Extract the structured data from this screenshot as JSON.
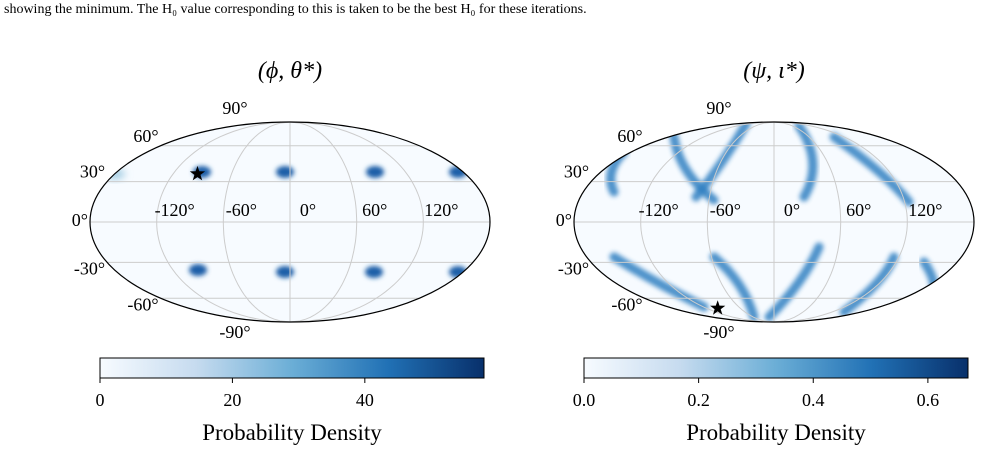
{
  "caption": "showing the minimum. The H₀ value corresponding to this is taken to be the best H₀ for these iterations.",
  "panels": [
    {
      "title": "(ϕ, θ*)",
      "lon_ticks": [
        {
          "value": -120,
          "label": "-120°"
        },
        {
          "value": -60,
          "label": "-60°"
        },
        {
          "value": 0,
          "label": "0°"
        },
        {
          "value": 60,
          "label": "60°"
        },
        {
          "value": 120,
          "label": "120°"
        }
      ],
      "lat_ticks": [
        {
          "value": 90,
          "label": "90°"
        },
        {
          "value": 60,
          "label": "60°"
        },
        {
          "value": 30,
          "label": "30°"
        },
        {
          "value": 0,
          "label": "0°"
        },
        {
          "value": -30,
          "label": "-30°"
        },
        {
          "value": -60,
          "label": "-60°"
        },
        {
          "value": -90,
          "label": "-90°"
        }
      ],
      "star": {
        "lon": -95,
        "lat": 36
      },
      "colorbar": {
        "lim": [
          0,
          58
        ],
        "ticks": [
          0,
          20,
          40
        ],
        "label": "Probability Density"
      }
    },
    {
      "title": "(ψ, ι*)",
      "lon_ticks": [
        {
          "value": -120,
          "label": "-120°"
        },
        {
          "value": -60,
          "label": "-60°"
        },
        {
          "value": 0,
          "label": "0°"
        },
        {
          "value": 60,
          "label": "60°"
        },
        {
          "value": 120,
          "label": "120°"
        }
      ],
      "lat_ticks": [
        {
          "value": 90,
          "label": "90°"
        },
        {
          "value": 60,
          "label": "60°"
        },
        {
          "value": 30,
          "label": "30°"
        },
        {
          "value": 0,
          "label": "0°"
        },
        {
          "value": -30,
          "label": "-30°"
        },
        {
          "value": -60,
          "label": "-60°"
        },
        {
          "value": -90,
          "label": "-90°"
        }
      ],
      "star": {
        "lon": -100,
        "lat": -70
      },
      "colorbar": {
        "lim": [
          0,
          0.67
        ],
        "ticks": [
          {
            "value": 0,
            "label": "0.0"
          },
          {
            "value": 0.2,
            "label": "0.2"
          },
          {
            "value": 0.4,
            "label": "0.4"
          },
          {
            "value": 0.6,
            "label": "0.6"
          }
        ],
        "label": "Probability Density"
      }
    }
  ]
}
